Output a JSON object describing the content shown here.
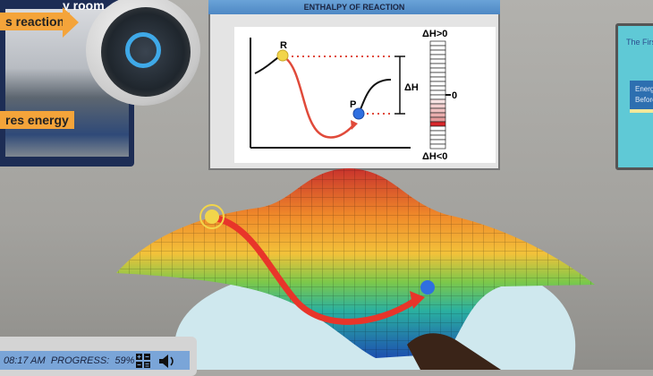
{
  "left_panel": {
    "title_fragment": "y room",
    "banner_top": "s reaction",
    "banner_bottom": "res energy"
  },
  "chart_panel": {
    "title": "ENTHALPY OF REACTION",
    "label_r": "R",
    "label_p": "P",
    "label_delta_h": "ΔH",
    "meter_top_label": "ΔH>0",
    "meter_zero_label": "0",
    "meter_bottom_label": "ΔH<0",
    "colors": {
      "reactant": "#f2d54a",
      "product": "#2f6fe0",
      "path": "#e04a3a",
      "meter_fill": "#d8262a"
    }
  },
  "right_panel": {
    "title_fragment": "The First",
    "box_text": "Energy\nBefore"
  },
  "status_bar": {
    "time": "08:17 AM",
    "progress_label": "PROGRESS:",
    "progress_value": "59%",
    "grid_icon": "calculator-icon",
    "sound_icon": "speaker-icon"
  }
}
